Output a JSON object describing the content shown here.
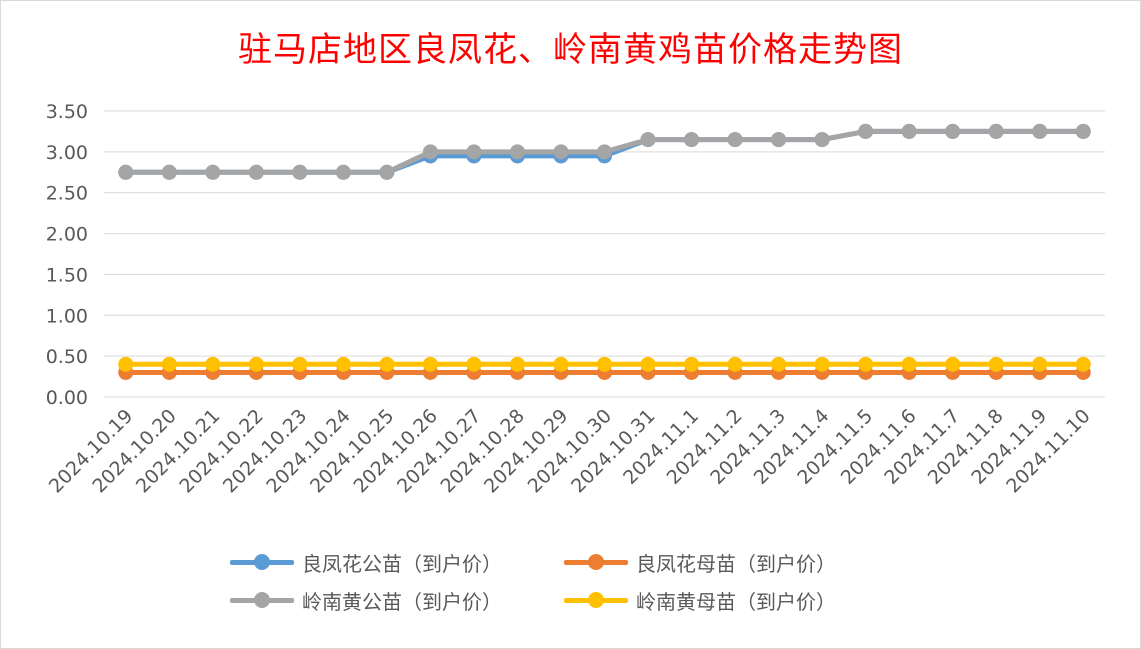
{
  "chart_data": {
    "type": "line",
    "title": "驻马店地区良凤花、岭南黄鸡苗价格走势图",
    "xlabel": "",
    "ylabel": "",
    "ylim": [
      0,
      3.5
    ],
    "yticks": [
      "0.00",
      "0.50",
      "1.00",
      "1.50",
      "2.00",
      "2.50",
      "3.00",
      "3.50"
    ],
    "grid": true,
    "legend_position": "bottom",
    "categories": [
      "2024.10.19",
      "2024.10.20",
      "2024.10.21",
      "2024.10.22",
      "2024.10.23",
      "2024.10.24",
      "2024.10.25",
      "2024.10.26",
      "2024.10.27",
      "2024.10.28",
      "2024.10.29",
      "2024.10.30",
      "2024.10.31",
      "2024.11.1",
      "2024.11.2",
      "2024.11.3",
      "2024.11.4",
      "2024.11.5",
      "2024.11.6",
      "2024.11.7",
      "2024.11.8",
      "2024.11.9",
      "2024.11.10"
    ],
    "series": [
      {
        "name": "良凤花公苗（到户价）",
        "color": "#5b9bd5",
        "values": [
          2.75,
          2.75,
          2.75,
          2.75,
          2.75,
          2.75,
          2.75,
          2.95,
          2.95,
          2.95,
          2.95,
          2.95,
          3.15,
          3.15,
          3.15,
          3.15,
          3.15,
          3.25,
          3.25,
          3.25,
          3.25,
          3.25,
          3.25
        ]
      },
      {
        "name": "良凤花母苗（到户价）",
        "color": "#ed7d31",
        "values": [
          0.3,
          0.3,
          0.3,
          0.3,
          0.3,
          0.3,
          0.3,
          0.3,
          0.3,
          0.3,
          0.3,
          0.3,
          0.3,
          0.3,
          0.3,
          0.3,
          0.3,
          0.3,
          0.3,
          0.3,
          0.3,
          0.3,
          0.3
        ]
      },
      {
        "name": "岭南黄公苗（到户价）",
        "color": "#a5a5a5",
        "values": [
          2.75,
          2.75,
          2.75,
          2.75,
          2.75,
          2.75,
          2.75,
          3.0,
          3.0,
          3.0,
          3.0,
          3.0,
          3.15,
          3.15,
          3.15,
          3.15,
          3.15,
          3.25,
          3.25,
          3.25,
          3.25,
          3.25,
          3.25
        ]
      },
      {
        "name": "岭南黄母苗（到户价）",
        "color": "#ffc000",
        "values": [
          0.4,
          0.4,
          0.4,
          0.4,
          0.4,
          0.4,
          0.4,
          0.4,
          0.4,
          0.4,
          0.4,
          0.4,
          0.4,
          0.4,
          0.4,
          0.4,
          0.4,
          0.4,
          0.4,
          0.4,
          0.4,
          0.4,
          0.4
        ]
      }
    ]
  }
}
